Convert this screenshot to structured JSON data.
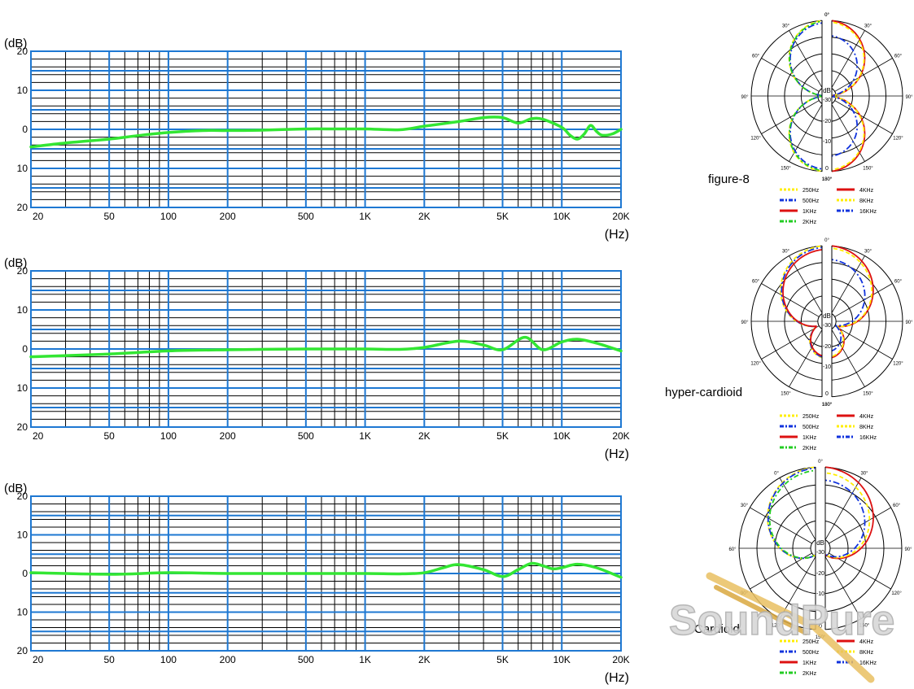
{
  "chart_data": [
    {
      "type": "line",
      "xscale": "log",
      "xlim": [
        20,
        20000
      ],
      "ylim": [
        -20,
        20
      ],
      "xlabel": "(Hz)",
      "ylabel": "(dB)",
      "grid": true,
      "xtick_labels": [
        "20",
        "50",
        "100",
        "200",
        "500",
        "1K",
        "2K",
        "5K",
        "10K",
        "20K"
      ],
      "xtick_values": [
        20,
        50,
        100,
        200,
        500,
        1000,
        2000,
        5000,
        10000,
        20000
      ],
      "ytick_labels": [
        "20",
        "10",
        "0",
        "10",
        "20"
      ],
      "ytick_values": [
        20,
        10,
        0,
        -10,
        -20
      ],
      "series": [
        {
          "color": "#33e633",
          "x": [
            20,
            30,
            50,
            70,
            100,
            150,
            200,
            300,
            500,
            700,
            1000,
            1500,
            2000,
            3000,
            4000,
            5000,
            6000,
            7000,
            8000,
            10000,
            11000,
            12000,
            13000,
            14000,
            15000,
            16000,
            18000,
            20000
          ],
          "y": [
            -4.5,
            -3.5,
            -2.5,
            -1.6,
            -0.8,
            -0.3,
            -0.3,
            -0.2,
            0.1,
            0.1,
            0.1,
            -0.1,
            0.8,
            2,
            3,
            3,
            1.6,
            2.7,
            2.6,
            0.5,
            -1.5,
            -2.5,
            -1.2,
            1,
            -0.5,
            -1.5,
            -1.2,
            0
          ]
        }
      ]
    },
    {
      "type": "line",
      "xscale": "log",
      "xlim": [
        20,
        20000
      ],
      "ylim": [
        -20,
        20
      ],
      "xlabel": "(Hz)",
      "ylabel": "(dB)",
      "grid": true,
      "xtick_labels": [
        "20",
        "50",
        "100",
        "200",
        "500",
        "1K",
        "2K",
        "5K",
        "10K",
        "20K"
      ],
      "xtick_values": [
        20,
        50,
        100,
        200,
        500,
        1000,
        2000,
        5000,
        10000,
        20000
      ],
      "ytick_labels": [
        "20",
        "10",
        "0",
        "10",
        "20"
      ],
      "ytick_values": [
        20,
        10,
        0,
        -10,
        -20
      ],
      "series": [
        {
          "color": "#33e633",
          "x": [
            20,
            50,
            100,
            200,
            500,
            1000,
            1500,
            2000,
            3000,
            4000,
            5000,
            6500,
            8000,
            10000,
            12000,
            15000,
            20000
          ],
          "y": [
            -2,
            -1.3,
            -0.5,
            -0.2,
            0,
            0,
            -0.1,
            0.4,
            2,
            1,
            -0.2,
            3,
            -0.2,
            1.8,
            2.5,
            1.5,
            -0.5
          ]
        }
      ]
    },
    {
      "type": "line",
      "xscale": "log",
      "xlim": [
        20,
        20000
      ],
      "ylim": [
        -20,
        20
      ],
      "xlabel": "(Hz)",
      "ylabel": "(dB)",
      "grid": true,
      "xtick_labels": [
        "20",
        "50",
        "100",
        "200",
        "500",
        "1K",
        "2K",
        "5K",
        "10K",
        "20K"
      ],
      "xtick_values": [
        20,
        50,
        100,
        200,
        500,
        1000,
        2000,
        5000,
        10000,
        20000
      ],
      "ytick_labels": [
        "20",
        "10",
        "0",
        "10",
        "20"
      ],
      "ytick_values": [
        20,
        10,
        0,
        -10,
        -20
      ],
      "series": [
        {
          "color": "#33e633",
          "x": [
            20,
            50,
            100,
            200,
            500,
            1000,
            1500,
            2000,
            2500,
            3000,
            4000,
            5000,
            6000,
            7000,
            8000,
            9000,
            10000,
            12000,
            15000,
            20000
          ],
          "y": [
            0.2,
            -0.2,
            0.2,
            0,
            0,
            0,
            -0.1,
            0.2,
            1.5,
            2.3,
            1,
            -0.8,
            1,
            2.6,
            2,
            1.2,
            1.5,
            2.4,
            1.5,
            -1
          ]
        }
      ]
    }
  ],
  "polar_panels": [
    {
      "title": "figure-8",
      "db_label": "dB",
      "ring_labels": [
        "-30",
        "-20",
        "-10",
        "0"
      ],
      "angle_labels_left": [
        "0°",
        "30°",
        "60°",
        "90°",
        "120°",
        "150°",
        "180°"
      ],
      "angle_labels_right": [
        "0°",
        "30°",
        "60°",
        "90°",
        "120°",
        "150°",
        "180°"
      ],
      "legend": [
        {
          "label": "250Hz",
          "color": "#ffee00"
        },
        {
          "label": "500Hz",
          "color": "#1133dd"
        },
        {
          "label": "1KHz",
          "color": "#dd1111"
        },
        {
          "label": "2KHz",
          "color": "#22cc22"
        },
        {
          "label": "4KHz",
          "color": "#dd1111"
        },
        {
          "label": "8KHz",
          "color": "#ffee00"
        },
        {
          "label": "16KHz",
          "color": "#1133dd"
        }
      ]
    },
    {
      "title": "hyper-cardioid",
      "db_label": "dB",
      "ring_labels": [
        "-30",
        "-20",
        "-10",
        "0"
      ],
      "angle_labels_left": [
        "30°",
        "60°",
        "90°",
        "120°",
        "150°",
        "180°"
      ],
      "angle_labels_right": [
        "0°",
        "30°",
        "60°",
        "90°",
        "120°",
        "150°",
        "180°"
      ],
      "legend": [
        {
          "label": "250Hz",
          "color": "#ffee00"
        },
        {
          "label": "500Hz",
          "color": "#1133dd"
        },
        {
          "label": "1KHz",
          "color": "#dd1111"
        },
        {
          "label": "2KHz",
          "color": "#22cc22"
        },
        {
          "label": "4KHz",
          "color": "#dd1111"
        },
        {
          "label": "8KHz",
          "color": "#ffee00"
        },
        {
          "label": "16KHz",
          "color": "#1133dd"
        }
      ]
    },
    {
      "title": "Cardioid",
      "db_label": "dB",
      "ring_labels": [
        "-30",
        "-20",
        "-10",
        "0"
      ],
      "angle_labels_left": [
        "0°",
        "30°",
        "60°",
        "90°",
        "120°",
        "150°"
      ],
      "angle_labels_right": [
        "0°",
        "30°",
        "60°",
        "90°",
        "120°",
        "150°"
      ],
      "legend": [
        {
          "label": "250Hz",
          "color": "#ffee00"
        },
        {
          "label": "500Hz",
          "color": "#1133dd"
        },
        {
          "label": "1KHz",
          "color": "#dd1111"
        },
        {
          "label": "2KHz",
          "color": "#22cc22"
        },
        {
          "label": "4KHz",
          "color": "#dd1111"
        },
        {
          "label": "8KHz",
          "color": "#ffee00"
        },
        {
          "label": "16KHz",
          "color": "#1133dd"
        }
      ]
    }
  ],
  "watermark": {
    "text": "SoundPure"
  },
  "colors": {
    "grid": "#1e78d2",
    "curve": "#33e633"
  }
}
